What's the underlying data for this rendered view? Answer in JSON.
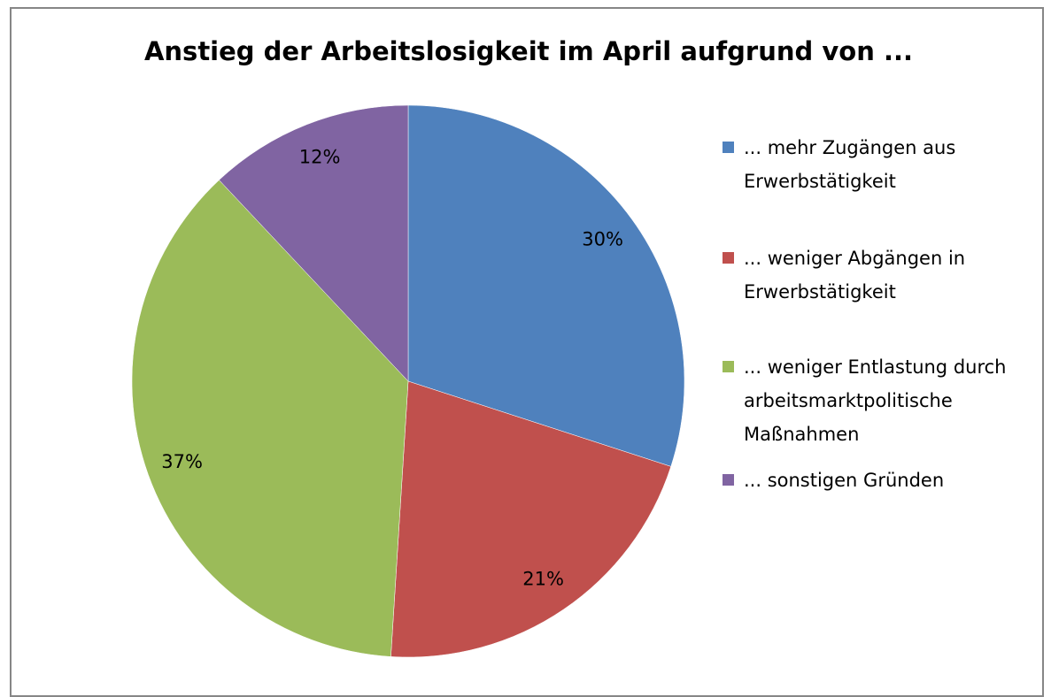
{
  "chart_data": {
    "type": "pie",
    "title": "Anstieg der Arbeitslosigkeit im April aufgrund von ...",
    "categories": [
      "... mehr Zugängen aus Erwerbstätigkeit",
      "... weniger Abgängen in Erwerbstätigkeit",
      "... weniger Entlastung durch arbeitsmarktpolitische Maßnahmen",
      "... sonstigen Gründen"
    ],
    "values": [
      30,
      21,
      37,
      12
    ],
    "value_labels": [
      "30%",
      "21%",
      "37%",
      "12%"
    ],
    "colors": [
      "#4f81bd",
      "#c0504d",
      "#9bbb59",
      "#8064a2"
    ],
    "legend": "right"
  }
}
